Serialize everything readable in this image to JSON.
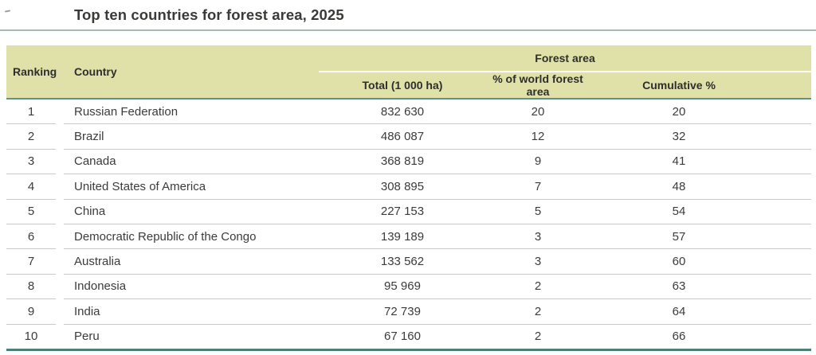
{
  "title": "Top ten countries for forest area, 2025",
  "table": {
    "header": {
      "ranking": "Ranking",
      "country": "Country",
      "group": "Forest area",
      "sub": {
        "total": "Total (1 000 ha)",
        "pct_world": "% of world forest area",
        "cumulative": "Cumulative %"
      }
    },
    "rows": [
      {
        "ranking": "1",
        "country": "Russian Federation",
        "total": "832 630",
        "pct_world": "20",
        "cumulative": "20"
      },
      {
        "ranking": "2",
        "country": "Brazil",
        "total": "486 087",
        "pct_world": "12",
        "cumulative": "32"
      },
      {
        "ranking": "3",
        "country": "Canada",
        "total": "368 819",
        "pct_world": "9",
        "cumulative": "41"
      },
      {
        "ranking": "4",
        "country": "United States of America",
        "total": "308 895",
        "pct_world": "7",
        "cumulative": "48"
      },
      {
        "ranking": "5",
        "country": "China",
        "total": "227 153",
        "pct_world": "5",
        "cumulative": "54"
      },
      {
        "ranking": "6",
        "country": "Democratic Republic of the Congo",
        "total": "139 189",
        "pct_world": "3",
        "cumulative": "57"
      },
      {
        "ranking": "7",
        "country": "Australia",
        "total": "133 562",
        "pct_world": "3",
        "cumulative": "60"
      },
      {
        "ranking": "8",
        "country": "Indonesia",
        "total": "95 969",
        "pct_world": "2",
        "cumulative": "63"
      },
      {
        "ranking": "9",
        "country": "India",
        "total": "72 739",
        "pct_world": "2",
        "cumulative": "64"
      },
      {
        "ranking": "10",
        "country": "Peru",
        "total": "67 160",
        "pct_world": "2",
        "cumulative": "66"
      }
    ]
  },
  "colors": {
    "header_bg": "#dfe1a8",
    "header_rule": "#5f928c",
    "title_rule": "#a6bbb7",
    "row_rule": "#c9c9c9",
    "bottom_rule": "#4d8177",
    "text": "#3a3a38",
    "subheader_rule": "#fdfdf6"
  }
}
